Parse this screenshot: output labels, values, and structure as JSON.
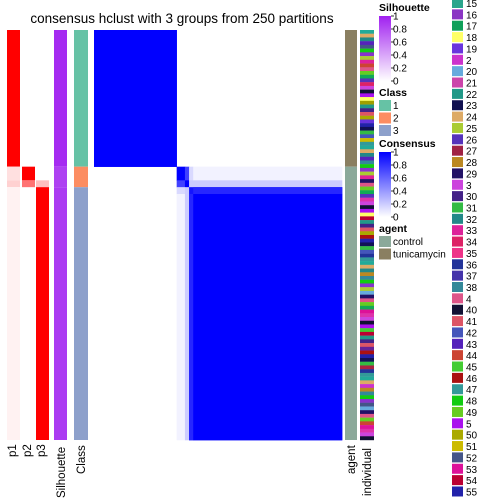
{
  "chart_data": {
    "type": "heatmap",
    "title": "consensus hclust with 3 groups from 250 partitions",
    "n_samples": 60,
    "class_sizes": [
      20,
      3,
      37
    ],
    "column_labels": {
      "p1": "p1",
      "p2": "p2",
      "p3": "p3",
      "silhouette": "Silhouette",
      "class": "Class",
      "agent": "agent",
      "individual": "individual"
    },
    "membership": {
      "p1": [
        [
          0,
          20,
          1.0
        ],
        [
          20,
          22,
          0.12
        ],
        [
          22,
          23,
          0.18
        ],
        [
          23,
          60,
          0.05
        ]
      ],
      "p2": [
        [
          20,
          22,
          1.0
        ],
        [
          22,
          23,
          0.55
        ],
        [
          23,
          60,
          0.0
        ]
      ],
      "p3": [
        [
          22,
          23,
          0.25
        ],
        [
          23,
          60,
          1.0
        ]
      ]
    },
    "silhouette_values": [
      [
        0,
        20,
        0.95
      ],
      [
        20,
        23,
        0.85
      ],
      [
        23,
        60,
        0.88
      ]
    ],
    "consensus_blocks": [
      {
        "rows": [
          0,
          20
        ],
        "cols": [
          0,
          20
        ],
        "value": 1.0
      },
      {
        "rows": [
          20,
          22
        ],
        "cols": [
          20,
          22
        ],
        "value": 1.0
      },
      {
        "rows": [
          20,
          22
        ],
        "cols": [
          22,
          23
        ],
        "value": 0.75
      },
      {
        "rows": [
          22,
          23
        ],
        "cols": [
          20,
          22
        ],
        "value": 0.75
      },
      {
        "rows": [
          22,
          23
        ],
        "cols": [
          22,
          23
        ],
        "value": 1.0
      },
      {
        "rows": [
          20,
          22
        ],
        "cols": [
          23,
          24
        ],
        "value": 0.15
      },
      {
        "rows": [
          23,
          24
        ],
        "cols": [
          20,
          22
        ],
        "value": 0.15
      },
      {
        "rows": [
          20,
          22
        ],
        "cols": [
          24,
          60
        ],
        "value": 0.05
      },
      {
        "rows": [
          24,
          60
        ],
        "cols": [
          20,
          22
        ],
        "value": 0.05
      },
      {
        "rows": [
          22,
          23
        ],
        "cols": [
          23,
          60
        ],
        "value": 0.2
      },
      {
        "rows": [
          23,
          60
        ],
        "cols": [
          22,
          23
        ],
        "value": 0.2
      },
      {
        "rows": [
          23,
          60
        ],
        "cols": [
          23,
          60
        ],
        "value": 0.92
      },
      {
        "rows": [
          23,
          24
        ],
        "cols": [
          24,
          60
        ],
        "value": 0.85
      },
      {
        "rows": [
          24,
          60
        ],
        "cols": [
          23,
          24
        ],
        "value": 0.85
      },
      {
        "rows": [
          24,
          60
        ],
        "cols": [
          24,
          60
        ],
        "value": 1.0
      }
    ],
    "agent_groups": [
      [
        0,
        20,
        "tunicamycin"
      ],
      [
        20,
        60,
        "control"
      ]
    ],
    "individual_palette": [
      "#22aa99",
      "#8833cc",
      "#11aa55",
      "#ffff66",
      "#6633dd",
      "#cc33cc",
      "#66aadd",
      "#dd33aa",
      "#229988",
      "#111155",
      "#ddaa66",
      "#aacc33",
      "#5533bb",
      "#a0a000",
      "#aa2244",
      "#bb8822",
      "#221166",
      "#cc44dd",
      "#442288",
      "#33bb44",
      "#228888",
      "#dd2299",
      "#dd2266",
      "#662299",
      "#223399",
      "#338899",
      "#dd5588",
      "#111133",
      "#dd5566",
      "#4455bb",
      "#5522bb",
      "#cc4433",
      "#44cc33",
      "#aa1111",
      "#339999",
      "#11cc11",
      "#66cc22",
      "#aa11ee",
      "#aaaa00",
      "#ccbb00",
      "#445588",
      "#dd1199",
      "#bb0033",
      "#2222aa"
    ],
    "legend": {
      "silhouette": {
        "title": "Silhouette",
        "ticks": [
          "1",
          "0.8",
          "0.6",
          "0.4",
          "0.2",
          "0"
        ],
        "colors": [
          "#a020f0",
          "#ffffff"
        ]
      },
      "class": {
        "title": "Class",
        "entries": [
          {
            "label": "1",
            "color": "#66c2a5"
          },
          {
            "label": "2",
            "color": "#fc8d62"
          },
          {
            "label": "3",
            "color": "#8da0cb"
          }
        ]
      },
      "consensus": {
        "title": "Consensus",
        "ticks": [
          "1",
          "0.8",
          "0.6",
          "0.4",
          "0.2",
          "0"
        ],
        "colors": [
          "#0000ff",
          "#ffffff"
        ]
      },
      "agent": {
        "title": "agent",
        "entries": [
          {
            "label": "control",
            "color": "#8ba99a"
          },
          {
            "label": "tunicamycin",
            "color": "#8a7f61"
          }
        ]
      },
      "individual": {
        "entries": [
          {
            "label": "15",
            "color": "#2aa58c"
          },
          {
            "label": "16",
            "color": "#8b35c4"
          },
          {
            "label": "17",
            "color": "#10a05a"
          },
          {
            "label": "18",
            "color": "#ffff66"
          },
          {
            "label": "19",
            "color": "#6a35dd"
          },
          {
            "label": "2",
            "color": "#cc33cc"
          },
          {
            "label": "20",
            "color": "#66aadd"
          },
          {
            "label": "21",
            "color": "#cc44aa"
          },
          {
            "label": "22",
            "color": "#229988"
          },
          {
            "label": "23",
            "color": "#101050"
          },
          {
            "label": "24",
            "color": "#ddaa66"
          },
          {
            "label": "25",
            "color": "#aacc33"
          },
          {
            "label": "26",
            "color": "#5533bb"
          },
          {
            "label": "27",
            "color": "#a02244"
          },
          {
            "label": "28",
            "color": "#bb8822"
          },
          {
            "label": "29",
            "color": "#221166"
          },
          {
            "label": "3",
            "color": "#cc44dd"
          },
          {
            "label": "30",
            "color": "#442288"
          },
          {
            "label": "31",
            "color": "#33bb44"
          },
          {
            "label": "32",
            "color": "#228888"
          },
          {
            "label": "33",
            "color": "#dd2299"
          },
          {
            "label": "34",
            "color": "#dd2266"
          },
          {
            "label": "35",
            "color": "#ee3388"
          },
          {
            "label": "36",
            "color": "#223399"
          },
          {
            "label": "37",
            "color": "#4433aa"
          },
          {
            "label": "38",
            "color": "#338899"
          },
          {
            "label": "4",
            "color": "#dd5588"
          },
          {
            "label": "40",
            "color": "#111133"
          },
          {
            "label": "41",
            "color": "#dd5566"
          },
          {
            "label": "42",
            "color": "#4455bb"
          },
          {
            "label": "43",
            "color": "#5522bb"
          },
          {
            "label": "44",
            "color": "#cc4433"
          },
          {
            "label": "45",
            "color": "#44cc33"
          },
          {
            "label": "46",
            "color": "#aa1111"
          },
          {
            "label": "47",
            "color": "#339999"
          },
          {
            "label": "48",
            "color": "#11cc11"
          },
          {
            "label": "49",
            "color": "#66cc22"
          },
          {
            "label": "5",
            "color": "#aa11ee"
          },
          {
            "label": "50",
            "color": "#aaaa00"
          },
          {
            "label": "51",
            "color": "#ccbb00"
          },
          {
            "label": "52",
            "color": "#445588"
          },
          {
            "label": "53",
            "color": "#dd1199"
          },
          {
            "label": "54",
            "color": "#bb0033"
          },
          {
            "label": "55",
            "color": "#2222aa"
          }
        ]
      }
    }
  }
}
